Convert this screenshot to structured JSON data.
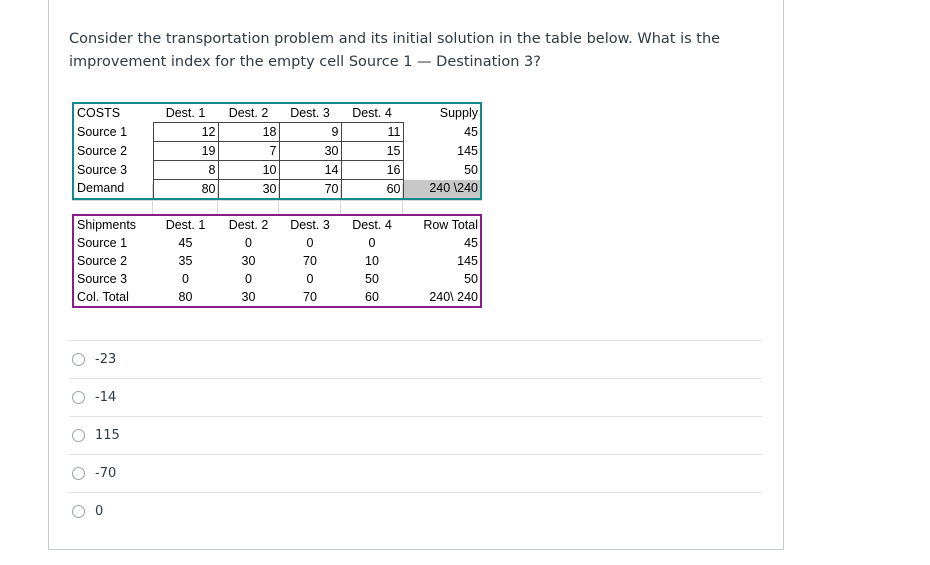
{
  "question": {
    "text": "Consider the transportation problem and its initial solution in the table below. What is the improvement index for the empty cell Source 1 — Destination 3?"
  },
  "costs_table": {
    "corner": "COSTS",
    "headers": [
      "Dest. 1",
      "Dest. 2",
      "Dest. 3",
      "Dest. 4",
      "Supply"
    ],
    "rows": [
      {
        "label": "Source 1",
        "values": [
          "12",
          "18",
          "9",
          "11",
          "45"
        ]
      },
      {
        "label": "Source 2",
        "values": [
          "19",
          "7",
          "30",
          "15",
          "145"
        ]
      },
      {
        "label": "Source 3",
        "values": [
          "8",
          "10",
          "14",
          "16",
          "50"
        ]
      },
      {
        "label": "Demand",
        "values": [
          "80",
          "30",
          "70",
          "60",
          "240 \\240"
        ]
      }
    ]
  },
  "shipments_table": {
    "corner": "Shipments",
    "headers": [
      "Dest. 1",
      "Dest. 2",
      "Dest. 3",
      "Dest. 4",
      "Row Total"
    ],
    "rows": [
      {
        "label": "Source 1",
        "values": [
          "45",
          "0",
          "0",
          "0",
          "45"
        ]
      },
      {
        "label": "Source 2",
        "values": [
          "35",
          "30",
          "70",
          "10",
          "145"
        ]
      },
      {
        "label": "Source 3",
        "values": [
          "0",
          "0",
          "0",
          "50",
          "50"
        ]
      },
      {
        "label": "Col. Total",
        "values": [
          "80",
          "30",
          "70",
          "60",
          "240\\ 240"
        ]
      }
    ]
  },
  "options": [
    {
      "label": "-23"
    },
    {
      "label": "-14"
    },
    {
      "label": "115"
    },
    {
      "label": "-70"
    },
    {
      "label": "0"
    }
  ],
  "colors": {
    "costs_border": "#0f8a8a",
    "shipments_border": "#8a1c8a",
    "text": "#2d3b45"
  }
}
